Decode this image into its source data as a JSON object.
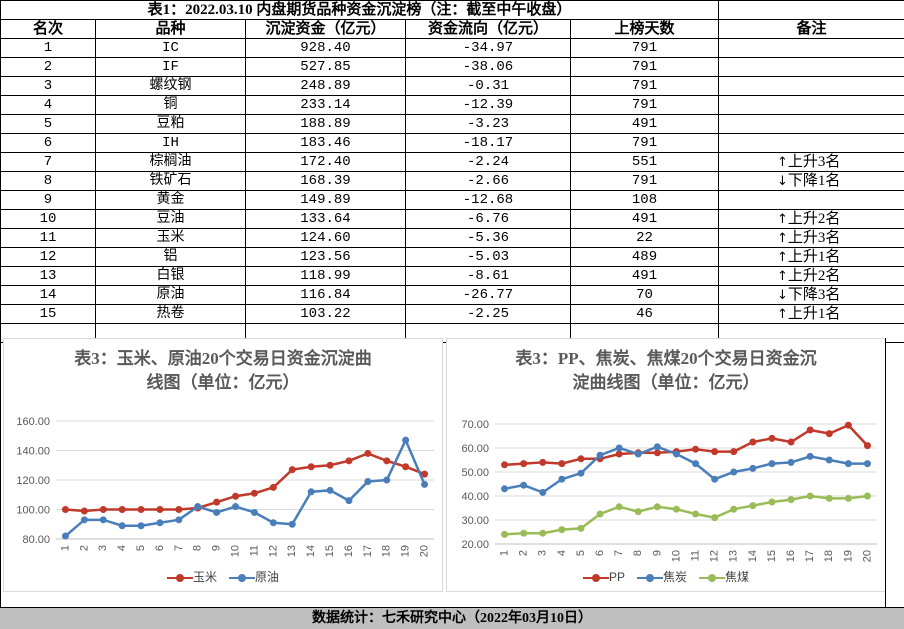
{
  "sheet": {
    "title": "表1：2022.03.10 内盘期货品种资金沉淀榜（注：截至中午收盘）",
    "headers": [
      "名次",
      "品种",
      "沉淀资金（亿元）",
      "资金流向（亿元）",
      "上榜天数",
      "备注"
    ],
    "rows": [
      {
        "rank": "1",
        "name": "IC",
        "funds": "928.40",
        "flow": "-34.97",
        "days": "791",
        "note_arrow": "",
        "note": ""
      },
      {
        "rank": "2",
        "name": "IF",
        "funds": "527.85",
        "flow": "-38.06",
        "days": "791",
        "note_arrow": "",
        "note": ""
      },
      {
        "rank": "3",
        "name": "螺纹钢",
        "funds": "248.89",
        "flow": "-0.31",
        "days": "791",
        "note_arrow": "",
        "note": ""
      },
      {
        "rank": "4",
        "name": "铜",
        "funds": "233.14",
        "flow": "-12.39",
        "days": "791",
        "note_arrow": "",
        "note": ""
      },
      {
        "rank": "5",
        "name": "豆粕",
        "funds": "188.89",
        "flow": "-3.23",
        "days": "491",
        "note_arrow": "",
        "note": ""
      },
      {
        "rank": "6",
        "name": "IH",
        "funds": "183.46",
        "flow": "-18.17",
        "days": "791",
        "note_arrow": "",
        "note": ""
      },
      {
        "rank": "7",
        "name": "棕榈油",
        "funds": "172.40",
        "flow": "-2.24",
        "days": "551",
        "note_arrow": "↑",
        "note": "上升3名"
      },
      {
        "rank": "8",
        "name": "铁矿石",
        "funds": "168.39",
        "flow": "-2.66",
        "days": "791",
        "note_arrow": "↓",
        "note": "下降1名"
      },
      {
        "rank": "9",
        "name": "黄金",
        "funds": "149.89",
        "flow": "-12.68",
        "days": "108",
        "note_arrow": "",
        "note": ""
      },
      {
        "rank": "10",
        "name": "豆油",
        "funds": "133.64",
        "flow": "-6.76",
        "days": "491",
        "note_arrow": "↑",
        "note": "上升2名"
      },
      {
        "rank": "11",
        "name": "玉米",
        "funds": "124.60",
        "flow": "-5.36",
        "days": "22",
        "note_arrow": "↑",
        "note": "上升3名"
      },
      {
        "rank": "12",
        "name": "铝",
        "funds": "123.56",
        "flow": "-5.03",
        "days": "489",
        "note_arrow": "↑",
        "note": "上升1名"
      },
      {
        "rank": "13",
        "name": "白银",
        "funds": "118.99",
        "flow": "-8.61",
        "days": "491",
        "note_arrow": "↑",
        "note": "上升2名"
      },
      {
        "rank": "14",
        "name": "原油",
        "funds": "116.84",
        "flow": "-26.77",
        "days": "70",
        "note_arrow": "↓",
        "note": "下降3名"
      },
      {
        "rank": "15",
        "name": "热卷",
        "funds": "103.22",
        "flow": "-2.25",
        "days": "46",
        "note_arrow": "↑",
        "note": "上升1名"
      }
    ]
  },
  "colors": {
    "red": "#c0392b",
    "blue": "#4a7ebb",
    "green": "#9bbb59",
    "grid": "#d9d9d9",
    "axis_text": "#595959",
    "footer_bg": "#bfbfbf"
  },
  "chart_data": [
    {
      "type": "line",
      "title_line1": "表3：玉米、原油20个交易日资金沉淀曲",
      "title_line2": "线图（单位：亿元）",
      "x": [
        "1",
        "2",
        "3",
        "4",
        "5",
        "6",
        "7",
        "8",
        "9",
        "10",
        "11",
        "12",
        "13",
        "14",
        "15",
        "16",
        "17",
        "18",
        "19",
        "20"
      ],
      "ylim": [
        80,
        160
      ],
      "yticks": [
        "80.00",
        "100.00",
        "120.00",
        "140.00",
        "160.00"
      ],
      "grid": true,
      "legend": "bottom",
      "series": [
        {
          "name": "玉米",
          "color": "#c0392b",
          "values": [
            100,
            99,
            100,
            100,
            100,
            100,
            100,
            101,
            105,
            109,
            111,
            115,
            127,
            129,
            130,
            133,
            138,
            133,
            129,
            124
          ]
        },
        {
          "name": "原油",
          "color": "#4a7ebb",
          "values": [
            82,
            93,
            93,
            89,
            89,
            91,
            93,
            102,
            98,
            102,
            98,
            91,
            90,
            112,
            113,
            106,
            119,
            120,
            147,
            117
          ]
        }
      ]
    },
    {
      "type": "line",
      "title_line1": "表3：PP、焦炭、焦煤20个交易日资金沉",
      "title_line2": "淀曲线图（单位：亿元）",
      "x": [
        "1",
        "2",
        "3",
        "4",
        "5",
        "6",
        "7",
        "8",
        "9",
        "10",
        "11",
        "12",
        "13",
        "14",
        "15",
        "16",
        "17",
        "18",
        "19",
        "20"
      ],
      "ylim": [
        20,
        70
      ],
      "yticks": [
        "20.00",
        "30.00",
        "40.00",
        "50.00",
        "60.00",
        "70.00"
      ],
      "grid": true,
      "legend": "bottom",
      "series": [
        {
          "name": "PP",
          "color": "#c0392b",
          "values": [
            53,
            53.5,
            54,
            53.5,
            55.5,
            55.5,
            57.5,
            58,
            58,
            58.5,
            59.5,
            58.5,
            58.5,
            62.5,
            64,
            62.5,
            67.5,
            66,
            69.5,
            61
          ]
        },
        {
          "name": "焦炭",
          "color": "#4a7ebb",
          "values": [
            43,
            44.5,
            41.5,
            47,
            49.5,
            57,
            60,
            57.5,
            60.5,
            57.5,
            53.5,
            47,
            50,
            51.5,
            53.5,
            54,
            56.5,
            55,
            53.5,
            53.5
          ]
        },
        {
          "name": "焦煤",
          "color": "#9bbb59",
          "values": [
            24,
            24.5,
            24.5,
            26,
            26.5,
            32.5,
            35.5,
            33.5,
            35.5,
            34.5,
            32.5,
            31,
            34.5,
            36,
            37.5,
            38.5,
            40,
            39,
            39,
            40
          ]
        }
      ]
    }
  ],
  "footer": "数据统计：七禾研究中心（2022年03月10日）"
}
